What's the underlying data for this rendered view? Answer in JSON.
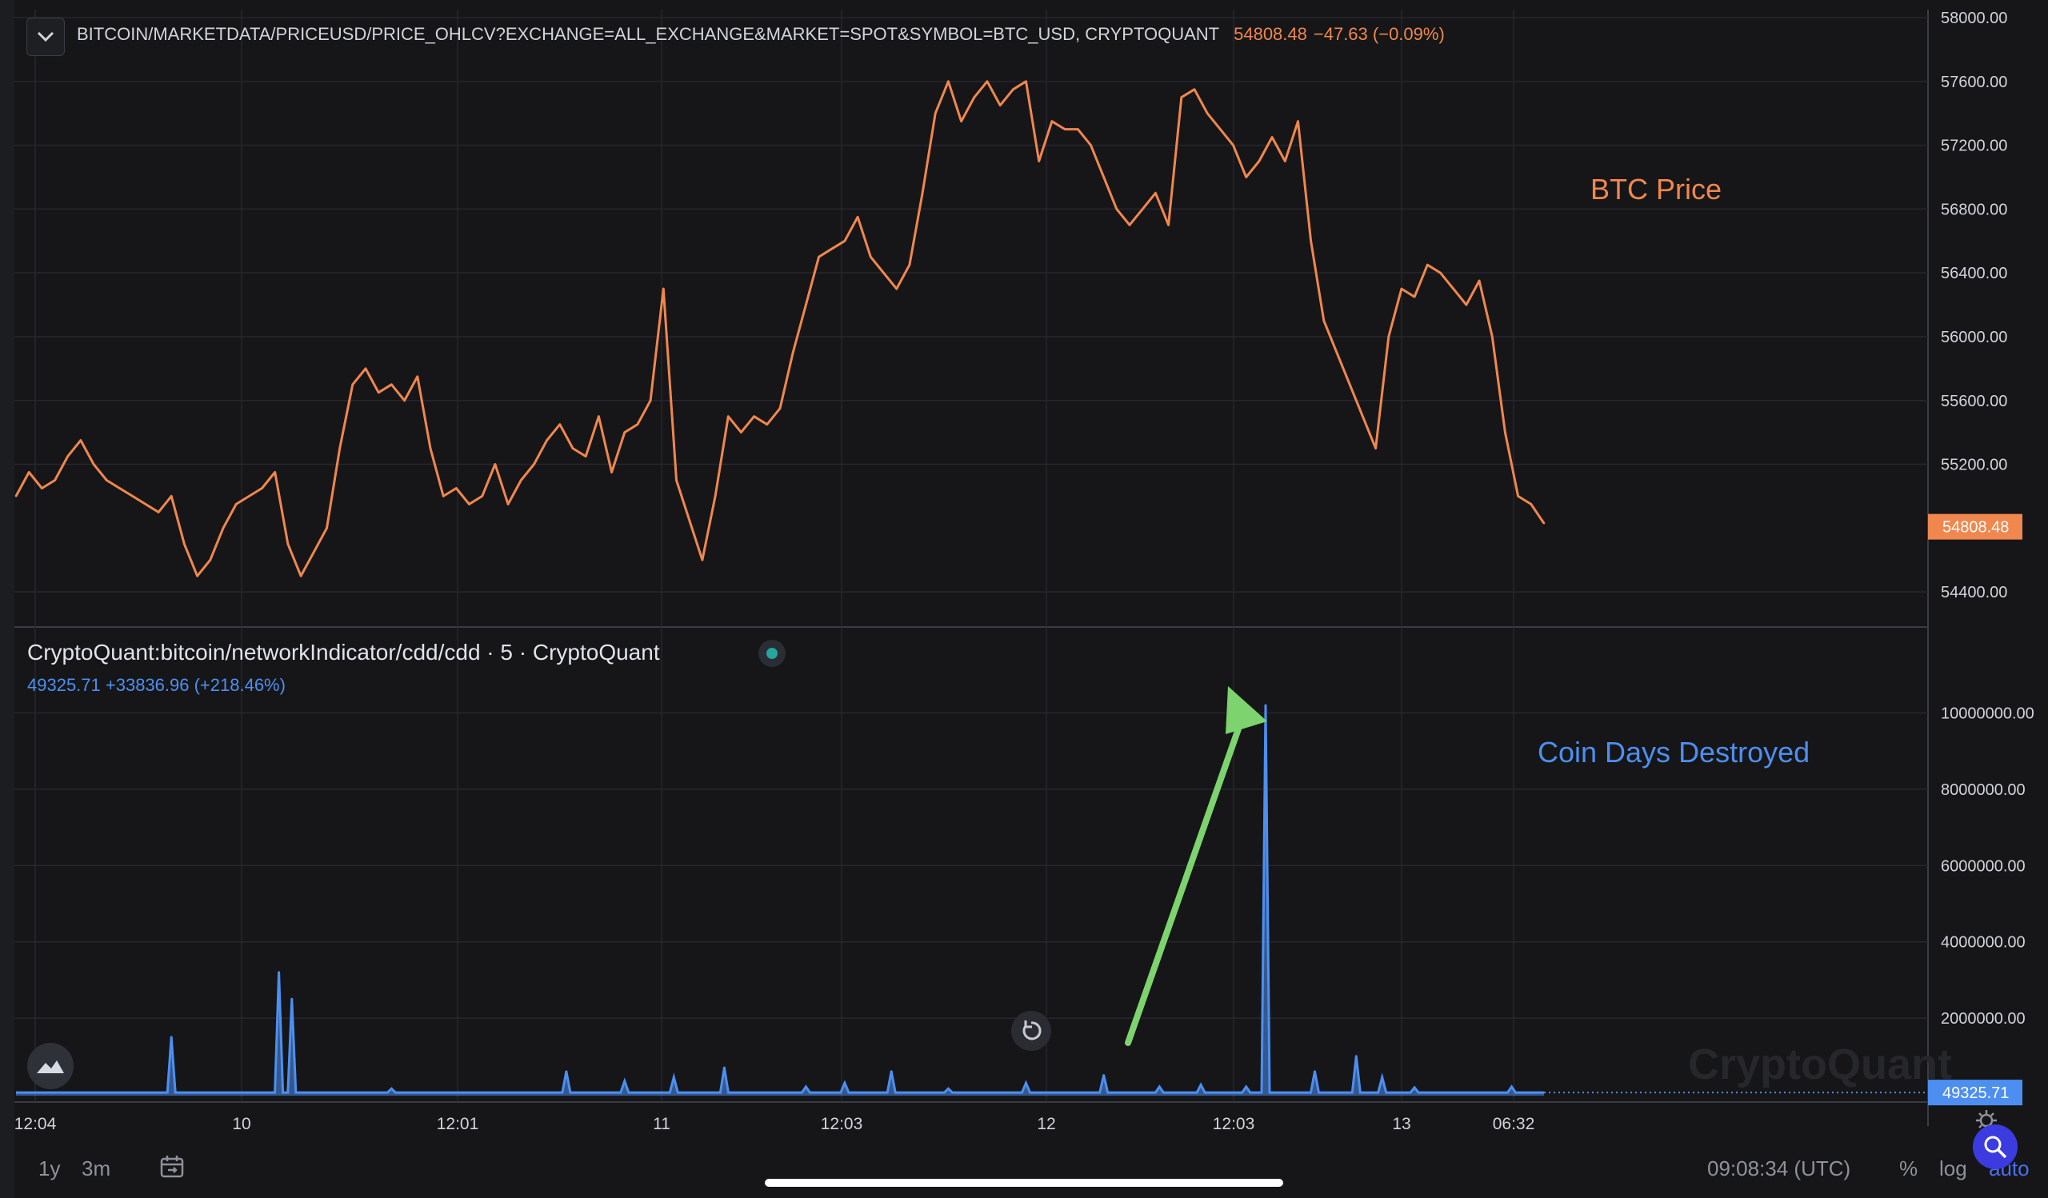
{
  "header": {
    "symbol": "BITCOIN/MARKETDATA/PRICEUSD/PRICE_OHLCV?EXCHANGE=ALL_EXCHANGE&MARKET=SPOT&SYMBOL=BTC_USD, CRYPTOQUANT",
    "last_price": "54808.48",
    "change": "−47.63 (−0.09%)"
  },
  "indicator": {
    "title": "CryptoQuant:bitcoin/networkIndicator/cdd/cdd · 5 · CryptoQuant",
    "value_line": "49325.71 +33836.96 (+218.46%)"
  },
  "annotations": {
    "btc_label": "BTC Price",
    "cdd_label": "Coin Days Destroyed"
  },
  "watermark": "CryptoQuant",
  "bottom_bar": {
    "range_1y": "1y",
    "range_3m": "3m",
    "clock": "09:08:34 (UTC)",
    "percent": "%",
    "log": "log",
    "auto": "auto"
  },
  "colors": {
    "btc": "#f0874e",
    "cdd": "#4d8ff0",
    "arrow": "#7dd36e",
    "grid": "#262630",
    "background": "#161618"
  },
  "icons": {
    "collapse": "chevron-down-icon",
    "reset": "rotate-icon",
    "logo": "cryptoquant-logo-icon",
    "calendar": "calendar-range-icon",
    "search": "search-icon",
    "settings": "gear-icon"
  },
  "chart_data": [
    {
      "type": "line",
      "x_ticks": [
        "12:04",
        "10",
        "12:01",
        "11",
        "12:03",
        "12",
        "12:03",
        "13",
        "06:32"
      ],
      "y_ticks": [
        "58000.00",
        "57600.00",
        "57200.00",
        "56800.00",
        "56400.00",
        "56000.00",
        "55600.00",
        "55200.00",
        "54400.00"
      ],
      "last_value_label": "54808.48",
      "ylim": [
        54150,
        58000
      ],
      "series": [
        {
          "name": "BTC Price",
          "color": "#f0874e",
          "x": [
            0,
            10,
            20,
            30,
            40,
            50,
            60,
            70,
            80,
            90,
            100,
            110,
            120,
            130,
            140,
            150,
            160,
            170,
            180,
            190,
            200,
            210,
            220,
            230,
            240,
            250,
            260,
            270,
            280,
            290,
            300,
            310,
            320,
            330,
            340,
            350,
            360,
            370,
            380,
            390,
            400,
            410,
            420,
            430,
            440,
            450,
            460,
            470,
            480,
            490,
            500,
            510,
            520,
            530,
            540,
            550,
            560,
            570,
            580,
            590,
            600,
            610,
            620,
            630,
            640,
            650,
            660,
            670,
            680,
            690,
            700,
            710,
            720,
            730,
            740,
            750,
            760,
            770,
            780,
            790,
            800,
            810,
            820,
            830,
            840,
            850,
            860,
            870,
            880,
            890,
            900,
            910,
            920,
            930,
            940,
            950,
            960,
            970,
            980,
            990,
            1000,
            1010,
            1020,
            1030,
            1040,
            1050,
            1060,
            1070,
            1080,
            1090,
            1100,
            1110,
            1120,
            1130,
            1140,
            1150,
            1160,
            1170,
            1180
          ],
          "y": [
            55000,
            55150,
            55050,
            55100,
            55250,
            55350,
            55200,
            55100,
            55050,
            55000,
            54950,
            54900,
            55000,
            54700,
            54500,
            54600,
            54800,
            54950,
            55000,
            55050,
            55150,
            54700,
            54500,
            54650,
            54800,
            55300,
            55700,
            55800,
            55650,
            55700,
            55600,
            55750,
            55300,
            55000,
            55050,
            54950,
            55000,
            55200,
            54950,
            55100,
            55200,
            55350,
            55450,
            55300,
            55250,
            55500,
            55150,
            55400,
            55450,
            55600,
            56300,
            55100,
            54850,
            54600,
            55000,
            55500,
            55400,
            55500,
            55450,
            55550,
            55900,
            56200,
            56500,
            56550,
            56600,
            56750,
            56500,
            56400,
            56300,
            56450,
            56900,
            57400,
            57600,
            57350,
            57500,
            57600,
            57450,
            57550,
            57600,
            57100,
            57350,
            57300,
            57300,
            57200,
            57000,
            56800,
            56700,
            56800,
            56900,
            56700,
            57500,
            57550,
            57400,
            57300,
            57200,
            57000,
            57100,
            57250,
            57100,
            57350,
            56600,
            56100,
            55900,
            55700,
            55500,
            55300,
            56000,
            56300,
            56250,
            56450,
            56400,
            56300,
            56200,
            56350,
            56000,
            55400,
            55000,
            54950,
            54830
          ]
        }
      ]
    },
    {
      "type": "area",
      "y_ticks": [
        "10000000.00",
        "8000000.00",
        "6000000.00",
        "4000000.00",
        "2000000.00"
      ],
      "last_value_label": "49325.71",
      "ylim": [
        -200000,
        11500000
      ],
      "baseline_value": 49325.71,
      "series": [
        {
          "name": "Coin Days Destroyed",
          "color": "#4d8ff0",
          "spikes": [
            {
              "x": 120,
              "v": 1500000
            },
            {
              "x": 203,
              "v": 3200000
            },
            {
              "x": 213,
              "v": 2500000
            },
            {
              "x": 290,
              "v": 150000
            },
            {
              "x": 425,
              "v": 600000
            },
            {
              "x": 470,
              "v": 350000
            },
            {
              "x": 508,
              "v": 450000
            },
            {
              "x": 547,
              "v": 700000
            },
            {
              "x": 610,
              "v": 200000
            },
            {
              "x": 640,
              "v": 300000
            },
            {
              "x": 676,
              "v": 600000
            },
            {
              "x": 720,
              "v": 150000
            },
            {
              "x": 780,
              "v": 300000
            },
            {
              "x": 840,
              "v": 500000
            },
            {
              "x": 883,
              "v": 200000
            },
            {
              "x": 915,
              "v": 250000
            },
            {
              "x": 950,
              "v": 200000
            },
            {
              "x": 965,
              "v": 10200000
            },
            {
              "x": 1003,
              "v": 600000
            },
            {
              "x": 1035,
              "v": 1000000
            },
            {
              "x": 1055,
              "v": 450000
            },
            {
              "x": 1080,
              "v": 180000
            },
            {
              "x": 1155,
              "v": 200000
            }
          ]
        }
      ]
    }
  ]
}
